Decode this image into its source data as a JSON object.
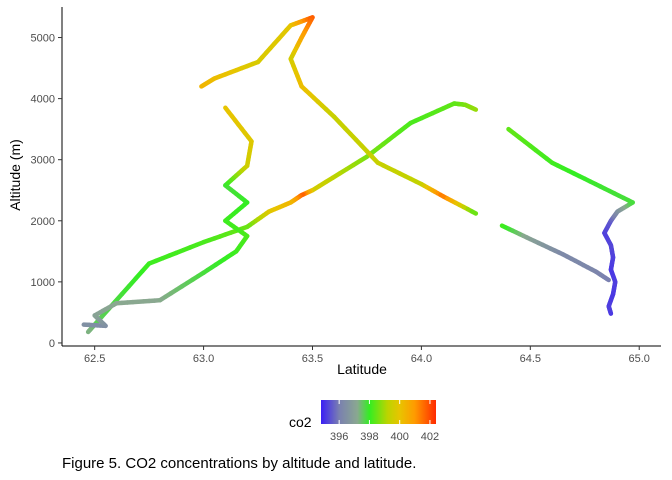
{
  "chart_data": {
    "type": "scatter",
    "xlabel": "Latitude",
    "ylabel": "Altitude (m)",
    "xlim": [
      62.35,
      65.1
    ],
    "ylim": [
      -50,
      5500
    ],
    "x_ticks": [
      62.5,
      63.0,
      63.5,
      64.0,
      64.5,
      65.0
    ],
    "x_tick_labels": [
      "62.5",
      "63.0",
      "63.5",
      "64.0",
      "64.5",
      "65.0"
    ],
    "y_ticks": [
      0,
      1000,
      2000,
      3000,
      4000,
      5000
    ],
    "y_tick_labels": [
      "0",
      "1000",
      "2000",
      "3000",
      "4000",
      "5000"
    ],
    "grid": false,
    "legend": {
      "title": "co2",
      "placement": "bottom",
      "range": [
        394.8,
        402.4
      ],
      "ticks": [
        396,
        398,
        400,
        402
      ],
      "tick_labels": [
        "396",
        "398",
        "400",
        "402"
      ],
      "colors": [
        {
          "value": 394.8,
          "color": "#3a1ff5"
        },
        {
          "value": 396.0,
          "color": "#7a80b0"
        },
        {
          "value": 397.2,
          "color": "#8aa890"
        },
        {
          "value": 398.0,
          "color": "#33ee22"
        },
        {
          "value": 399.2,
          "color": "#bcd400"
        },
        {
          "value": 400.0,
          "color": "#e8c400"
        },
        {
          "value": 401.0,
          "color": "#ff9a00"
        },
        {
          "value": 402.4,
          "color": "#ff2a00"
        }
      ]
    },
    "series": [
      {
        "points": [
          [
            64.87,
            480,
            395.1
          ],
          [
            64.86,
            600,
            395.2
          ],
          [
            64.88,
            800,
            395.1
          ],
          [
            64.89,
            1000,
            395.2
          ],
          [
            64.87,
            1200,
            395.1
          ],
          [
            64.88,
            1400,
            395.2
          ],
          [
            64.87,
            1600,
            395.3
          ],
          [
            64.84,
            1800,
            395.2
          ],
          [
            64.87,
            2000,
            395.5
          ],
          [
            64.9,
            2150,
            396.4
          ],
          [
            64.97,
            2300,
            397.8
          ],
          [
            64.8,
            2600,
            397.9
          ],
          [
            64.6,
            2950,
            398.1
          ],
          [
            64.4,
            3500,
            398.4
          ]
        ]
      },
      {
        "points": [
          [
            64.25,
            3820,
            398.9
          ],
          [
            64.2,
            3900,
            398.7
          ],
          [
            64.15,
            3920,
            398.4
          ],
          [
            63.95,
            3600,
            398.2
          ],
          [
            63.75,
            3050,
            398.6
          ],
          [
            63.5,
            2500,
            399.6
          ],
          [
            63.45,
            2420,
            401.8
          ],
          [
            63.4,
            2300,
            400.4
          ],
          [
            63.3,
            2150,
            399.9
          ],
          [
            63.2,
            1900,
            398.5
          ],
          [
            63.0,
            1650,
            398.2
          ],
          [
            62.75,
            1300,
            398.1
          ],
          [
            62.5,
            300,
            397.6
          ],
          [
            62.47,
            180,
            397.3
          ]
        ]
      },
      {
        "points": [
          [
            62.45,
            300,
            396.5
          ],
          [
            62.55,
            280,
            396.4
          ],
          [
            62.5,
            450,
            397.0
          ],
          [
            62.6,
            650,
            397.2
          ],
          [
            62.8,
            700,
            397.2
          ],
          [
            63.0,
            1150,
            397.8
          ],
          [
            63.15,
            1500,
            398.1
          ],
          [
            63.2,
            1750,
            398.2
          ],
          [
            63.1,
            2000,
            398.1
          ],
          [
            63.2,
            2300,
            398.0
          ],
          [
            63.1,
            2580,
            397.8
          ],
          [
            63.2,
            2900,
            399.5
          ],
          [
            63.22,
            3300,
            399.8
          ],
          [
            63.1,
            3850,
            400.0
          ]
        ]
      },
      {
        "points": [
          [
            62.99,
            4200,
            400.4
          ],
          [
            63.05,
            4330,
            400.2
          ],
          [
            63.25,
            4600,
            399.7
          ],
          [
            63.4,
            5200,
            399.9
          ],
          [
            63.5,
            5330,
            401.8
          ],
          [
            63.45,
            5000,
            400.8
          ],
          [
            63.4,
            4650,
            399.6
          ],
          [
            63.45,
            4200,
            400.2
          ],
          [
            63.6,
            3700,
            399.4
          ],
          [
            63.8,
            2950,
            399.4
          ],
          [
            64.0,
            2600,
            399.3
          ],
          [
            64.1,
            2400,
            401.5
          ],
          [
            64.25,
            2120,
            398.3
          ]
        ]
      },
      {
        "points": [
          [
            64.37,
            1920,
            398.2
          ],
          [
            64.5,
            1700,
            397.0
          ],
          [
            64.65,
            1450,
            396.3
          ],
          [
            64.8,
            1170,
            396.2
          ],
          [
            64.86,
            1030,
            396.0
          ]
        ]
      }
    ]
  },
  "caption": "Figure 5. CO2 concentrations by altitude and latitude."
}
